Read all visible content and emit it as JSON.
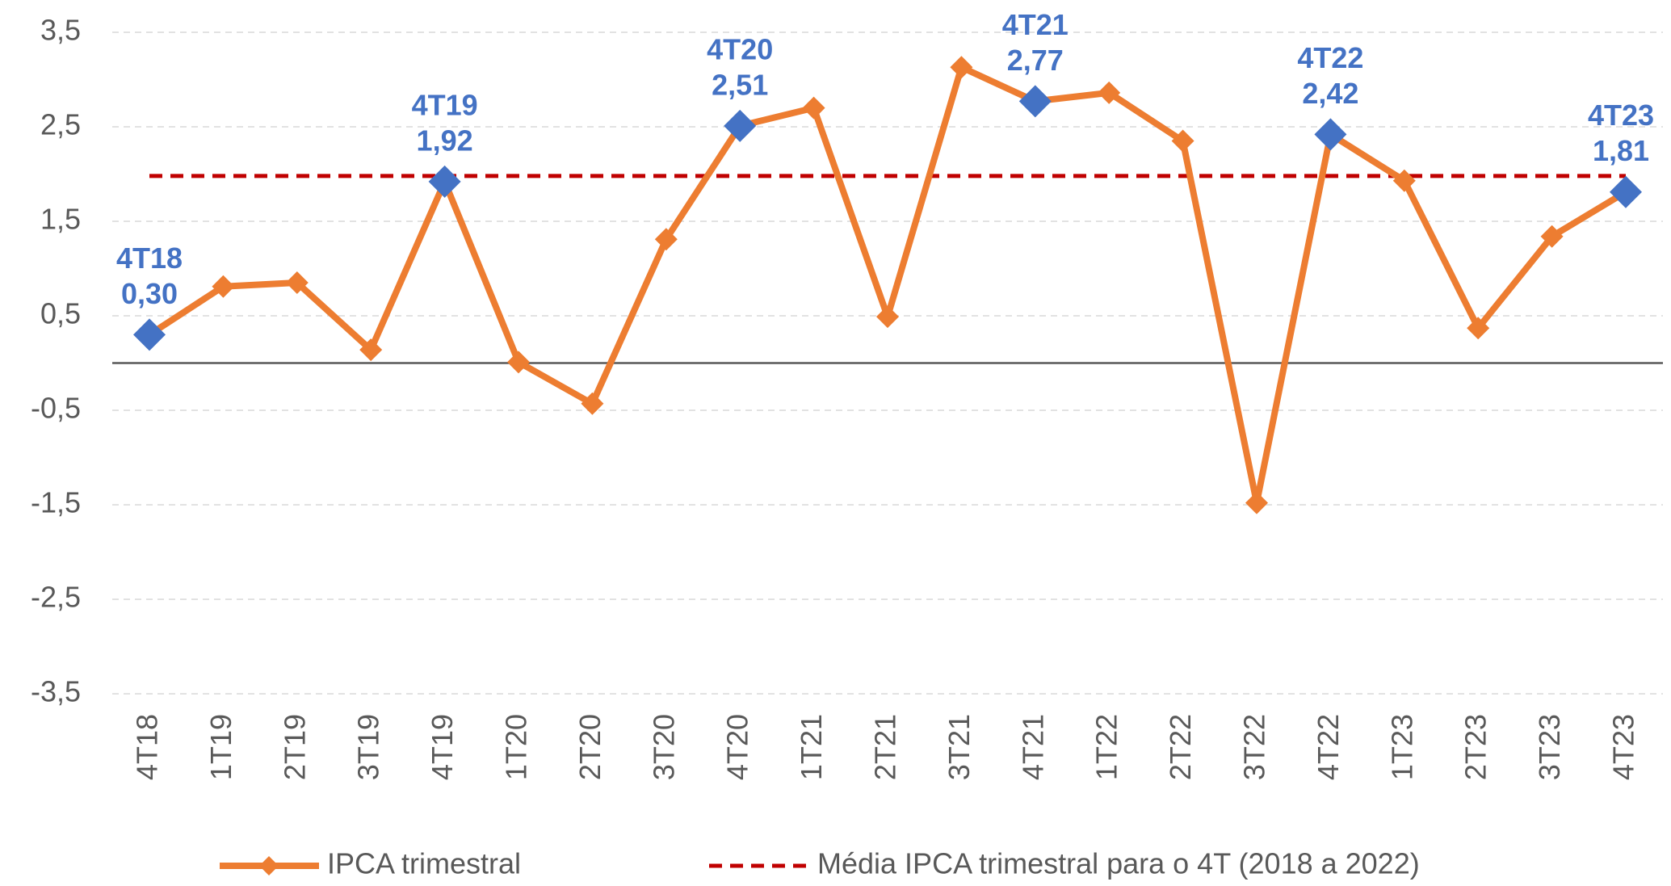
{
  "chart_data": {
    "type": "line",
    "categories": [
      "4T18",
      "1T19",
      "2T19",
      "3T19",
      "4T19",
      "1T20",
      "2T20",
      "3T20",
      "4T20",
      "1T21",
      "2T21",
      "3T21",
      "4T21",
      "1T22",
      "2T22",
      "3T22",
      "4T22",
      "1T23",
      "2T23",
      "3T23",
      "4T23"
    ],
    "series": [
      {
        "name": "IPCA trimestral",
        "color": "#ed7d31",
        "highlight_color": "#4472c4",
        "values": [
          0.3,
          0.81,
          0.85,
          0.14,
          1.92,
          0.01,
          -0.43,
          1.31,
          2.51,
          2.7,
          0.49,
          3.13,
          2.77,
          2.86,
          2.35,
          -1.48,
          2.42,
          1.93,
          0.37,
          1.34,
          1.81
        ],
        "value_labels": [
          "0,30",
          null,
          null,
          null,
          "1,92",
          null,
          null,
          null,
          "2,51",
          null,
          null,
          null,
          "2,77",
          null,
          null,
          null,
          "2,42",
          null,
          null,
          null,
          "1,81"
        ]
      },
      {
        "name": "Média IPCA trimestral para o 4T (2018 a 2022)",
        "color": "#c00000",
        "dashed": true,
        "values": [
          1.98,
          1.98,
          1.98,
          1.98,
          1.98,
          1.98,
          1.98,
          1.98,
          1.98,
          1.98,
          1.98,
          1.98,
          1.98,
          1.98,
          1.98,
          1.98,
          1.98,
          1.98,
          1.98,
          1.98,
          1.98
        ]
      }
    ],
    "ylim": [
      -3.5,
      3.5
    ],
    "yticks": [
      {
        "value": 3.5,
        "label": "3,5"
      },
      {
        "value": 2.5,
        "label": "2,5"
      },
      {
        "value": 1.5,
        "label": "1,5"
      },
      {
        "value": 0.5,
        "label": "0,5"
      },
      {
        "value": -0.5,
        "label": "-0,5"
      },
      {
        "value": -1.5,
        "label": "-1,5"
      },
      {
        "value": -2.5,
        "label": "-2,5"
      },
      {
        "value": -3.5,
        "label": "-3,5"
      }
    ],
    "grid": true,
    "legend": "bottom"
  }
}
